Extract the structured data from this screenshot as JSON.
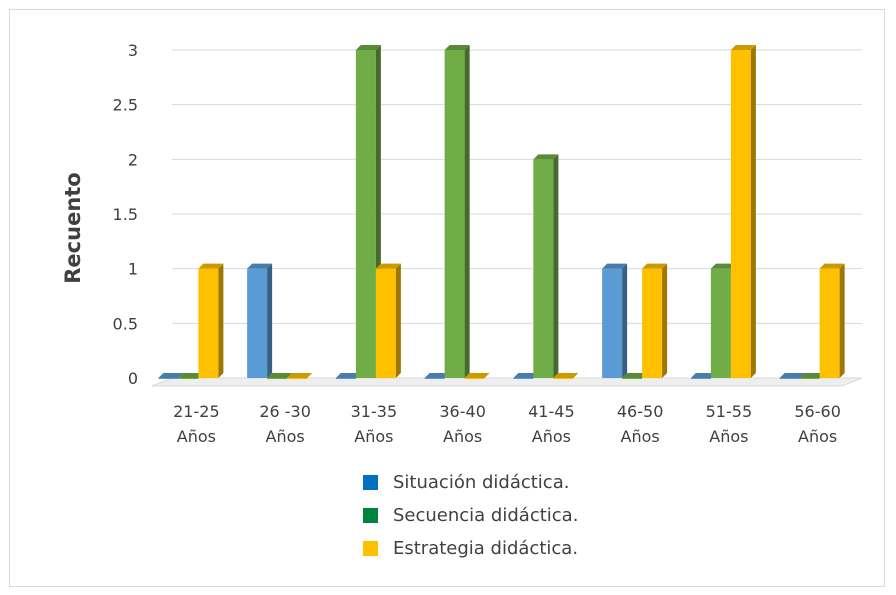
{
  "chart_data": {
    "type": "bar",
    "title": "",
    "xlabel": "",
    "ylabel": "Recuento",
    "ylim": [
      0,
      3
    ],
    "yticks": [
      "0",
      "0.5",
      "1",
      "1.5",
      "2",
      "2.5",
      "3"
    ],
    "grid": true,
    "legend_position": "bottom",
    "categories": [
      [
        "21-25",
        "Años"
      ],
      [
        "26 -30",
        "Años"
      ],
      [
        "31-35",
        "Años"
      ],
      [
        "36-40",
        "Años"
      ],
      [
        "41-45",
        "Años"
      ],
      [
        "46-50",
        "Años"
      ],
      [
        "51-55",
        "Años"
      ],
      [
        "56-60",
        "Años"
      ]
    ],
    "series": [
      {
        "name": "Situación didáctica.",
        "legend_color": "#0070c0",
        "color": "#5b9bd5",
        "values": [
          0,
          1,
          0,
          0,
          0,
          1,
          0,
          0
        ]
      },
      {
        "name": "Secuencia didáctica.",
        "legend_color": "#00843d",
        "color": "#70ad47",
        "values": [
          0,
          0,
          3,
          3,
          2,
          0,
          1,
          0
        ]
      },
      {
        "name": "Estrategia didáctica.",
        "legend_color": "#ffc000",
        "color": "#ffc000",
        "values": [
          1,
          0,
          1,
          0,
          0,
          1,
          3,
          1
        ]
      }
    ]
  }
}
